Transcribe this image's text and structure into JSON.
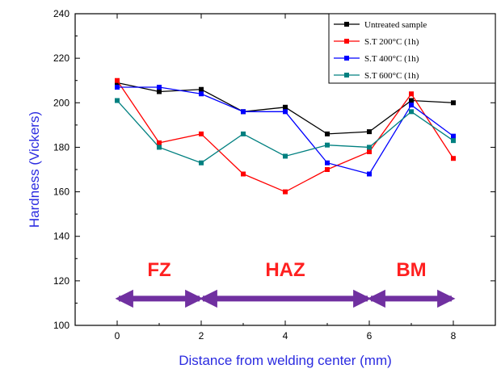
{
  "chart_data": {
    "type": "line",
    "xlabel": "Distance from welding center (mm)",
    "ylabel": "Hardness (Vickers)",
    "xlim": [
      -1,
      9
    ],
    "ylim": [
      100,
      240
    ],
    "xticks": [
      0,
      2,
      4,
      6,
      8
    ],
    "yticks": [
      100,
      120,
      140,
      160,
      180,
      200,
      220,
      240
    ],
    "legend_position": "top-right",
    "x": [
      0,
      1,
      2,
      3,
      4,
      5,
      6,
      7,
      8
    ],
    "series": [
      {
        "name": "Untreated sample",
        "color": "#000000",
        "marker": "square",
        "values": [
          209,
          205,
          206,
          196,
          198,
          186,
          187,
          201,
          200
        ]
      },
      {
        "name": "S.T 200°C (1h)",
        "color": "#ff0000",
        "marker": "square",
        "values": [
          210,
          182,
          186,
          168,
          160,
          170,
          178,
          204,
          175
        ]
      },
      {
        "name": "S.T 400°C (1h)",
        "color": "#0000ff",
        "marker": "square",
        "values": [
          207,
          207,
          204,
          196,
          196,
          173,
          168,
          199,
          185
        ]
      },
      {
        "name": "S.T 600°C (1h)",
        "color": "#008080",
        "marker": "square",
        "values": [
          201,
          180,
          173,
          186,
          176,
          181,
          180,
          196,
          183
        ]
      }
    ],
    "annotations": [
      {
        "text": "FZ",
        "x_center": 1,
        "arrow_from": 0,
        "arrow_to": 2
      },
      {
        "text": "HAZ",
        "x_center": 4,
        "arrow_from": 2,
        "arrow_to": 6
      },
      {
        "text": "BM",
        "x_center": 7,
        "arrow_from": 6,
        "arrow_to": 8
      }
    ],
    "annotation_arrow_y": 112,
    "annotation_text_y": 125,
    "colors": {
      "axis_title": "#2a2ae0",
      "zone_label": "#ff2020",
      "arrow": "#7030a0"
    }
  }
}
